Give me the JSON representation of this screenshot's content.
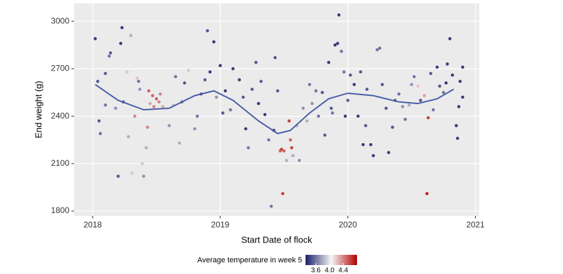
{
  "chart_data": {
    "type": "scatter",
    "x_label": "Start Date of flock",
    "y_label": "End weight (g)",
    "xlim": [
      2017.855,
      2021.03
    ],
    "ylim": [
      1770,
      3113
    ],
    "xticks": [
      2018,
      2019,
      2020,
      2021
    ],
    "yticks": [
      1800,
      2100,
      2400,
      2700,
      3000
    ],
    "grid": true,
    "series": [
      {
        "x": [
          2018.02,
          2018.04,
          2018.05,
          2018.06,
          2018.1,
          2018.13,
          2018.14,
          2018.1,
          2018.18,
          2018.2,
          2018.22,
          2018.23,
          2018.24,
          2018.27,
          2018.28,
          2018.3,
          2018.31,
          2018.33,
          2018.35,
          2018.36,
          2018.37,
          2018.39,
          2018.4,
          2018.42,
          2018.43,
          2018.44,
          2018.45,
          2018.47,
          2018.48,
          2018.5,
          2018.52,
          2018.53,
          2018.55,
          2018.57,
          2018.6,
          2018.63,
          2018.65,
          2018.68,
          2018.7,
          2018.72,
          2018.75,
          2018.8,
          2018.82,
          2018.85,
          2018.88,
          2018.9,
          2018.92,
          2018.95,
          2018.97,
          2019.0,
          2019.02,
          2019.04,
          2019.08,
          2019.1,
          2019.15,
          2019.18,
          2019.2,
          2019.22,
          2019.25,
          2019.28,
          2019.3,
          2019.32,
          2019.35,
          2019.38,
          2019.4,
          2019.42,
          2019.43,
          2019.45,
          2019.47,
          2019.48,
          2019.49,
          2019.5,
          2019.52,
          2019.54,
          2019.55,
          2019.56,
          2019.57,
          2019.6,
          2019.62,
          2019.65,
          2019.68,
          2019.7,
          2019.72,
          2019.75,
          2019.77,
          2019.8,
          2019.82,
          2019.85,
          2019.87,
          2019.88,
          2019.9,
          2019.92,
          2019.93,
          2019.95,
          2019.97,
          2019.98,
          2020.0,
          2020.02,
          2020.05,
          2020.08,
          2020.1,
          2020.12,
          2020.14,
          2020.15,
          2020.18,
          2020.2,
          2020.23,
          2020.25,
          2020.27,
          2020.3,
          2020.32,
          2020.35,
          2020.37,
          2020.4,
          2020.43,
          2020.45,
          2020.48,
          2020.5,
          2020.52,
          2020.55,
          2020.57,
          2020.6,
          2020.62,
          2020.63,
          2020.65,
          2020.67,
          2020.7,
          2020.72,
          2020.75,
          2020.77,
          2020.78,
          2020.8,
          2020.82,
          2020.85,
          2020.86,
          2020.87,
          2020.88,
          2020.9,
          2020.9
        ],
        "values": [
          2890,
          2620,
          2370,
          2290,
          2670,
          2780,
          2800,
          2470,
          2450,
          2020,
          2860,
          2960,
          2490,
          2680,
          2270,
          2910,
          2040,
          2400,
          2640,
          2620,
          2570,
          2100,
          2020,
          2200,
          2330,
          2560,
          2480,
          2530,
          2460,
          2510,
          2490,
          2540,
          2460,
          2380,
          2340,
          2470,
          2650,
          2230,
          2490,
          2610,
          2690,
          2320,
          2400,
          2540,
          2630,
          2940,
          2680,
          2870,
          2520,
          2720,
          2420,
          2560,
          2440,
          2700,
          2630,
          2520,
          2320,
          2200,
          2570,
          2740,
          2480,
          2620,
          2410,
          2250,
          1830,
          2310,
          2770,
          2560,
          2180,
          2190,
          1910,
          2180,
          2120,
          2370,
          2250,
          2200,
          2150,
          2340,
          2120,
          2450,
          2370,
          2600,
          2480,
          2560,
          2400,
          2550,
          2280,
          2740,
          2450,
          2420,
          2850,
          2860,
          3040,
          2810,
          2680,
          2400,
          2500,
          2660,
          2600,
          2400,
          2680,
          2220,
          2340,
          2570,
          2220,
          2150,
          2820,
          2830,
          2600,
          2450,
          2170,
          2330,
          2500,
          2540,
          2460,
          2380,
          2470,
          2600,
          2650,
          2590,
          2500,
          2530,
          1910,
          2390,
          2670,
          2440,
          2710,
          2590,
          2550,
          2610,
          2730,
          2890,
          2660,
          2340,
          2260,
          2460,
          2620,
          2710,
          2520
        ],
        "temps": [
          3.4,
          3.5,
          3.5,
          3.6,
          3.5,
          3.6,
          3.5,
          3.6,
          3.7,
          3.5,
          3.4,
          3.4,
          3.5,
          3.9,
          3.8,
          3.8,
          3.9,
          4.4,
          4.2,
          3.6,
          3.7,
          3.9,
          3.7,
          3.8,
          4.4,
          4.5,
          4.3,
          4.5,
          4.4,
          4.5,
          4.4,
          4.4,
          4.3,
          4.1,
          3.7,
          3.9,
          3.6,
          3.8,
          3.6,
          3.5,
          3.9,
          3.7,
          3.6,
          3.5,
          3.5,
          3.5,
          3.4,
          3.4,
          3.7,
          3.4,
          3.5,
          3.4,
          3.6,
          3.4,
          3.4,
          3.5,
          3.4,
          3.6,
          3.5,
          3.5,
          3.4,
          3.5,
          3.4,
          3.6,
          3.6,
          3.4,
          3.5,
          3.5,
          4.5,
          4.6,
          4.6,
          4.5,
          3.8,
          4.6,
          4.5,
          4.6,
          3.8,
          3.8,
          3.7,
          3.7,
          3.8,
          3.6,
          3.7,
          3.6,
          3.6,
          3.5,
          3.5,
          3.4,
          3.5,
          3.6,
          3.4,
          3.4,
          3.4,
          3.6,
          3.6,
          3.4,
          3.5,
          3.5,
          3.4,
          3.4,
          3.5,
          3.4,
          3.5,
          3.5,
          3.4,
          3.4,
          3.6,
          3.6,
          3.5,
          3.5,
          3.4,
          3.5,
          3.5,
          3.6,
          3.7,
          3.6,
          3.8,
          3.7,
          3.6,
          4.2,
          3.5,
          4.3,
          4.7,
          4.6,
          3.5,
          3.6,
          3.4,
          3.5,
          3.6,
          3.4,
          3.4,
          3.4,
          3.4,
          3.4,
          3.4,
          3.4,
          3.4,
          3.4,
          3.4
        ]
      }
    ],
    "trend": {
      "type": "line",
      "color": "#4a5ea8",
      "x": [
        2018.02,
        2018.2,
        2018.4,
        2018.6,
        2018.8,
        2018.95,
        2019.1,
        2019.3,
        2019.45,
        2019.55,
        2019.7,
        2019.85,
        2020.0,
        2020.2,
        2020.4,
        2020.55,
        2020.7,
        2020.83
      ],
      "values": [
        2600,
        2500,
        2440,
        2450,
        2530,
        2560,
        2500,
        2370,
        2290,
        2310,
        2420,
        2510,
        2545,
        2530,
        2490,
        2480,
        2510,
        2570
      ]
    },
    "color_legend": {
      "title": "Average temperature in week 5",
      "lim": [
        3.3,
        4.8
      ],
      "colors": [
        "#1b1f6b",
        "#f5f5f5",
        "#b30000"
      ],
      "ticks": [
        3.6,
        {
          "value": 4.0,
          "label": "4.0"
        },
        4.4
      ]
    }
  }
}
